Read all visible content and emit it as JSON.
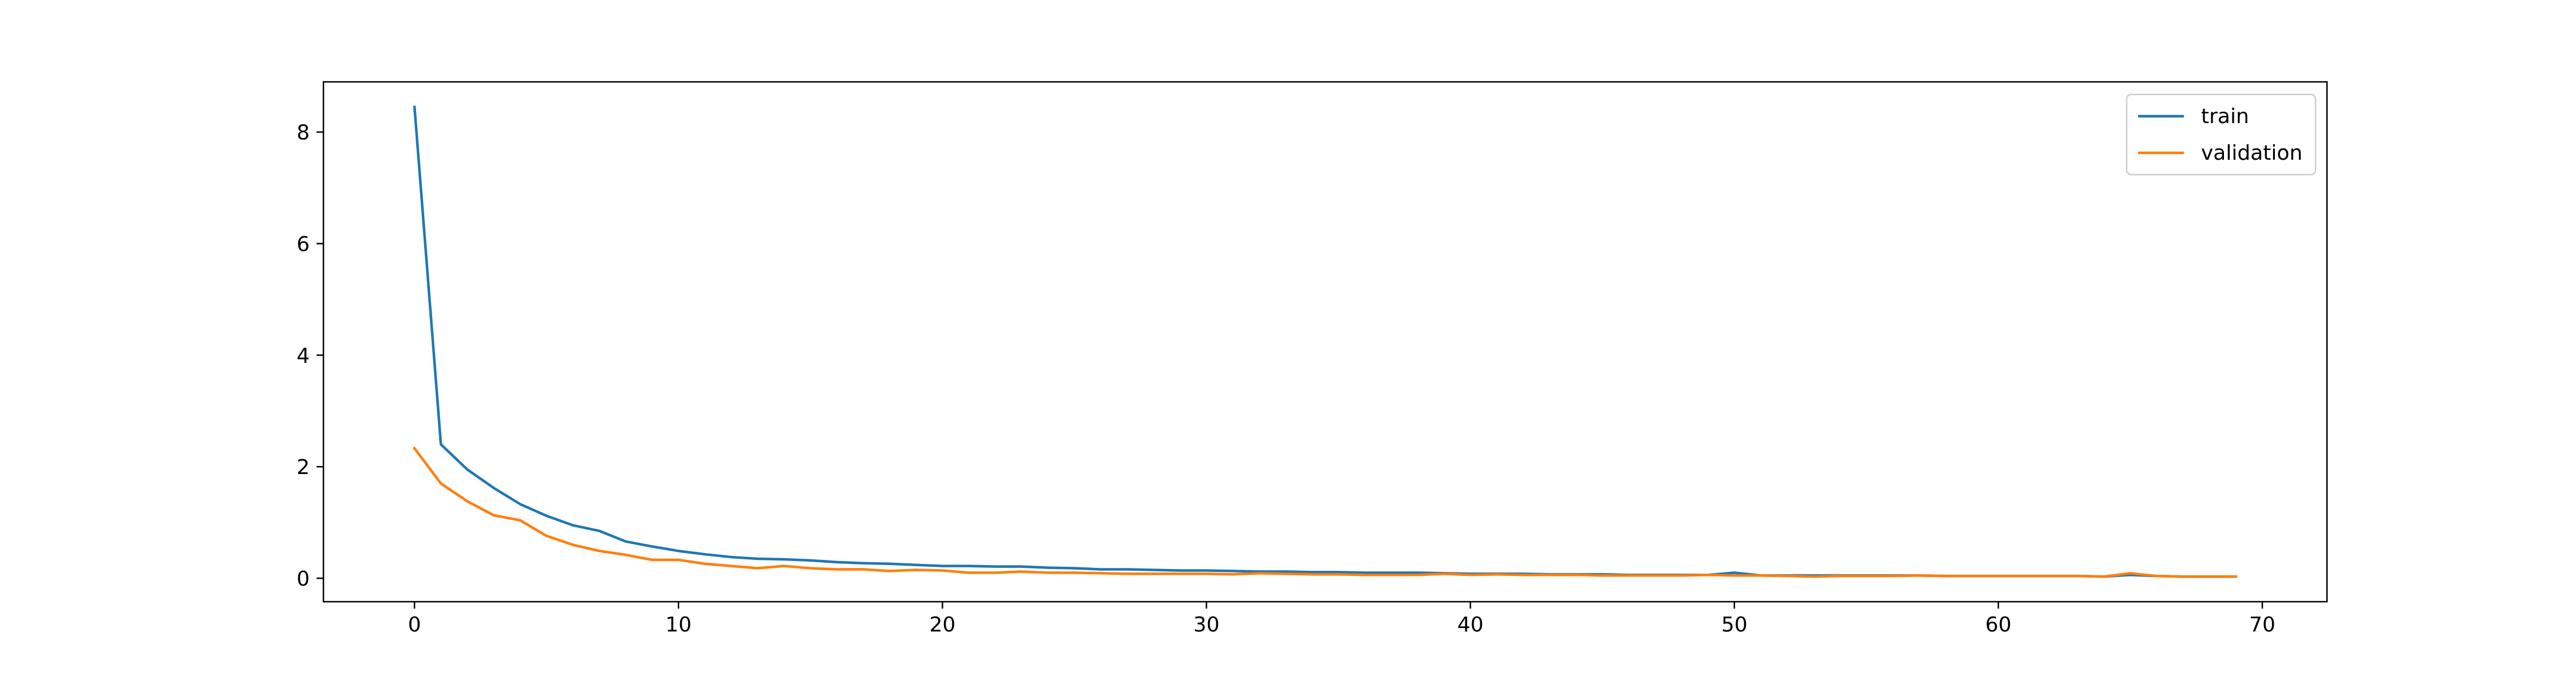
{
  "chart_data": {
    "type": "line",
    "title": "",
    "xlabel": "",
    "ylabel": "",
    "xlim": [
      -3.45,
      72.45
    ],
    "ylim": [
      -0.42,
      8.9
    ],
    "xticks": [
      0,
      10,
      20,
      30,
      40,
      50,
      60,
      70
    ],
    "yticks": [
      0,
      2,
      4,
      6,
      8
    ],
    "grid": false,
    "legend_position": "top-right",
    "x": [
      0,
      1,
      2,
      3,
      4,
      5,
      6,
      7,
      8,
      9,
      10,
      11,
      12,
      13,
      14,
      15,
      16,
      17,
      18,
      19,
      20,
      21,
      22,
      23,
      24,
      25,
      26,
      27,
      28,
      29,
      30,
      31,
      32,
      33,
      34,
      35,
      36,
      37,
      38,
      39,
      40,
      41,
      42,
      43,
      44,
      45,
      46,
      47,
      48,
      49,
      50,
      51,
      52,
      53,
      54,
      55,
      56,
      57,
      58,
      59,
      60,
      61,
      62,
      63,
      64,
      65,
      66,
      67,
      68,
      69
    ],
    "series": [
      {
        "name": "train",
        "color": "#1f77b4",
        "values": [
          8.45,
          2.4,
          1.95,
          1.62,
          1.33,
          1.12,
          0.95,
          0.85,
          0.66,
          0.57,
          0.49,
          0.43,
          0.38,
          0.35,
          0.34,
          0.32,
          0.29,
          0.27,
          0.26,
          0.24,
          0.22,
          0.22,
          0.21,
          0.21,
          0.19,
          0.18,
          0.16,
          0.16,
          0.15,
          0.14,
          0.14,
          0.13,
          0.12,
          0.12,
          0.11,
          0.11,
          0.1,
          0.1,
          0.1,
          0.09,
          0.08,
          0.08,
          0.08,
          0.07,
          0.07,
          0.07,
          0.06,
          0.06,
          0.06,
          0.06,
          0.1,
          0.05,
          0.05,
          0.05,
          0.05,
          0.05,
          0.05,
          0.05,
          0.04,
          0.04,
          0.04,
          0.04,
          0.04,
          0.04,
          0.03,
          0.06,
          0.04,
          0.03,
          0.03,
          0.03
        ]
      },
      {
        "name": "validation",
        "color": "#ff7f0e",
        "values": [
          2.33,
          1.7,
          1.38,
          1.13,
          1.04,
          0.76,
          0.6,
          0.49,
          0.42,
          0.33,
          0.33,
          0.26,
          0.22,
          0.18,
          0.22,
          0.18,
          0.16,
          0.16,
          0.13,
          0.15,
          0.14,
          0.1,
          0.1,
          0.12,
          0.1,
          0.1,
          0.09,
          0.08,
          0.08,
          0.08,
          0.08,
          0.07,
          0.09,
          0.08,
          0.07,
          0.07,
          0.06,
          0.06,
          0.06,
          0.08,
          0.06,
          0.07,
          0.06,
          0.06,
          0.06,
          0.05,
          0.05,
          0.05,
          0.05,
          0.06,
          0.05,
          0.05,
          0.04,
          0.03,
          0.04,
          0.04,
          0.04,
          0.05,
          0.04,
          0.04,
          0.04,
          0.04,
          0.04,
          0.04,
          0.03,
          0.09,
          0.04,
          0.03,
          0.03,
          0.03
        ]
      }
    ]
  }
}
